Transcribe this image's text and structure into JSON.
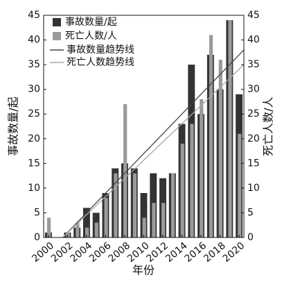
{
  "chart_data": {
    "type": "bar",
    "xlabel": "年份",
    "ylabel": "事故数量/起",
    "y2label": "死亡人数/人",
    "x": [
      2000,
      2001,
      2002,
      2003,
      2004,
      2005,
      2006,
      2007,
      2008,
      2009,
      2010,
      2011,
      2012,
      2013,
      2014,
      2015,
      2016,
      2017,
      2018,
      2019,
      2020
    ],
    "series": [
      {
        "name": "事故数量/起",
        "color": "#333333",
        "values": [
          1,
          0,
          1,
          2,
          6,
          5,
          9,
          14,
          15,
          14,
          9,
          13,
          12,
          13,
          23,
          35,
          25,
          37,
          30,
          44,
          29
        ]
      },
      {
        "name": "死亡人数/人",
        "color": "#9a9a9a",
        "axis": "y2",
        "values": [
          4,
          0,
          1,
          3,
          2,
          3,
          8,
          13,
          27,
          13,
          4,
          7,
          7,
          13,
          19,
          23,
          28,
          41,
          36,
          44,
          21
        ]
      }
    ],
    "trends": [
      {
        "name": "事故数量趋势线",
        "color": "#444444",
        "x": [
          2001.5,
          2020.5
        ],
        "values": [
          0,
          38
        ]
      },
      {
        "name": "死亡人数趋势线",
        "color": "#a8a8a8",
        "axis": "y2",
        "x": [
          2001.5,
          2020.5
        ],
        "values": [
          0,
          35
        ]
      }
    ],
    "xlim": [
      1999.5,
      2020.5
    ],
    "xticks": [
      2000,
      2002,
      2004,
      2006,
      2008,
      2010,
      2012,
      2014,
      2016,
      2018,
      2020
    ],
    "ylim": [
      0,
      45
    ],
    "yticks": [
      0,
      5,
      10,
      15,
      20,
      25,
      30,
      35,
      40,
      45
    ],
    "y2lim": [
      0,
      45
    ],
    "y2ticks": [
      0,
      5,
      10,
      15,
      20,
      25,
      30,
      35,
      40,
      45
    ],
    "legend": "upper left"
  }
}
